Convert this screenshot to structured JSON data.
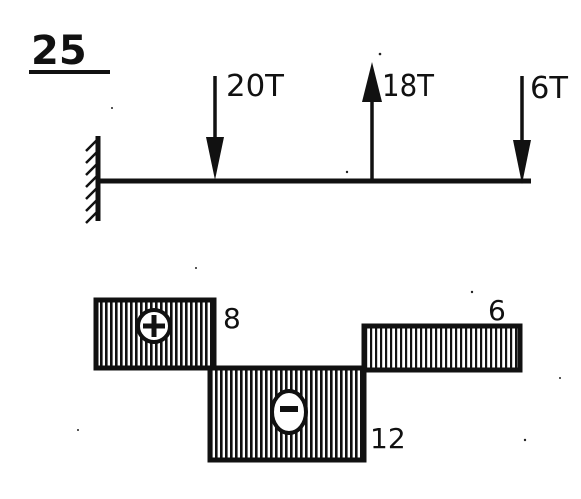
{
  "problem_number": "25",
  "loads": [
    {
      "label": "20T",
      "direction": "down"
    },
    {
      "label": "18T",
      "direction": "up"
    },
    {
      "label": "6T",
      "direction": "down"
    }
  ],
  "shear_diagram": {
    "segments": [
      {
        "sign": "+",
        "value": "8"
      },
      {
        "sign": "−",
        "value": "12"
      },
      {
        "sign": "",
        "value": "6"
      }
    ]
  },
  "colors": {
    "ink": "#111111",
    "paper": "#ffffff"
  }
}
